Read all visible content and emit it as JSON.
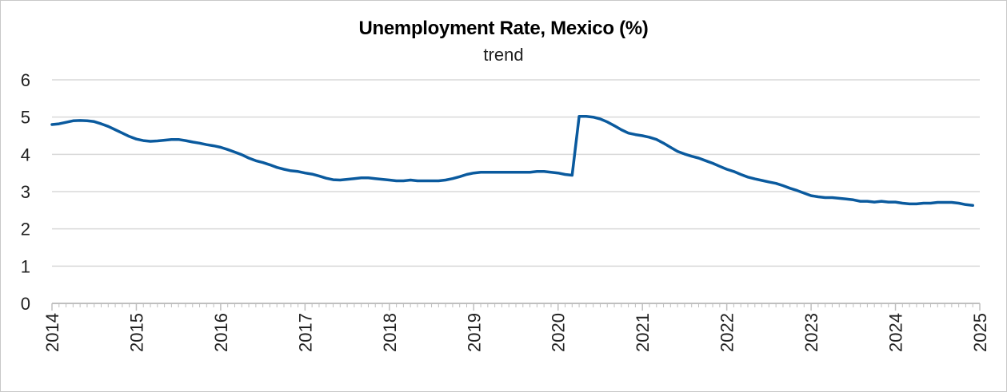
{
  "chart_data": {
    "type": "line",
    "title": "Unemployment Rate, Mexico (%)",
    "subtitle": "trend",
    "xlabel": "",
    "ylabel": "",
    "ylim": [
      0,
      6
    ],
    "yticks": [
      "0",
      "1",
      "2",
      "3",
      "4",
      "5",
      "6"
    ],
    "xticks": [
      "2014",
      "2015",
      "2016",
      "2017",
      "2018",
      "2019",
      "2020",
      "2021",
      "2022",
      "2023",
      "2024",
      "2025"
    ],
    "grid": true,
    "series": [
      {
        "color": "#0a5a9e",
        "points": [
          [
            "2014-01",
            4.8
          ],
          [
            "2014-02",
            4.82
          ],
          [
            "2014-03",
            4.86
          ],
          [
            "2014-04",
            4.9
          ],
          [
            "2014-05",
            4.91
          ],
          [
            "2014-06",
            4.9
          ],
          [
            "2014-07",
            4.88
          ],
          [
            "2014-08",
            4.82
          ],
          [
            "2014-09",
            4.75
          ],
          [
            "2014-10",
            4.66
          ],
          [
            "2014-11",
            4.57
          ],
          [
            "2014-12",
            4.48
          ],
          [
            "2015-01",
            4.41
          ],
          [
            "2015-02",
            4.37
          ],
          [
            "2015-03",
            4.35
          ],
          [
            "2015-04",
            4.36
          ],
          [
            "2015-05",
            4.38
          ],
          [
            "2015-06",
            4.4
          ],
          [
            "2015-07",
            4.4
          ],
          [
            "2015-08",
            4.37
          ],
          [
            "2015-09",
            4.33
          ],
          [
            "2015-10",
            4.3
          ],
          [
            "2015-11",
            4.26
          ],
          [
            "2015-12",
            4.23
          ],
          [
            "2016-01",
            4.19
          ],
          [
            "2016-02",
            4.13
          ],
          [
            "2016-03",
            4.06
          ],
          [
            "2016-04",
            3.99
          ],
          [
            "2016-05",
            3.9
          ],
          [
            "2016-06",
            3.83
          ],
          [
            "2016-07",
            3.78
          ],
          [
            "2016-08",
            3.72
          ],
          [
            "2016-09",
            3.65
          ],
          [
            "2016-10",
            3.6
          ],
          [
            "2016-11",
            3.56
          ],
          [
            "2016-12",
            3.54
          ],
          [
            "2017-01",
            3.5
          ],
          [
            "2017-02",
            3.47
          ],
          [
            "2017-03",
            3.42
          ],
          [
            "2017-04",
            3.36
          ],
          [
            "2017-05",
            3.32
          ],
          [
            "2017-06",
            3.31
          ],
          [
            "2017-07",
            3.33
          ],
          [
            "2017-08",
            3.35
          ],
          [
            "2017-09",
            3.37
          ],
          [
            "2017-10",
            3.37
          ],
          [
            "2017-11",
            3.35
          ],
          [
            "2017-12",
            3.33
          ],
          [
            "2018-01",
            3.31
          ],
          [
            "2018-02",
            3.29
          ],
          [
            "2018-03",
            3.29
          ],
          [
            "2018-04",
            3.31
          ],
          [
            "2018-05",
            3.29
          ],
          [
            "2018-06",
            3.29
          ],
          [
            "2018-07",
            3.29
          ],
          [
            "2018-08",
            3.29
          ],
          [
            "2018-09",
            3.31
          ],
          [
            "2018-10",
            3.35
          ],
          [
            "2018-11",
            3.4
          ],
          [
            "2018-12",
            3.46
          ],
          [
            "2019-01",
            3.5
          ],
          [
            "2019-02",
            3.52
          ],
          [
            "2019-03",
            3.52
          ],
          [
            "2019-04",
            3.52
          ],
          [
            "2019-05",
            3.52
          ],
          [
            "2019-06",
            3.52
          ],
          [
            "2019-07",
            3.52
          ],
          [
            "2019-08",
            3.52
          ],
          [
            "2019-09",
            3.52
          ],
          [
            "2019-10",
            3.54
          ],
          [
            "2019-11",
            3.54
          ],
          [
            "2019-12",
            3.52
          ],
          [
            "2020-01",
            3.5
          ],
          [
            "2020-02",
            3.46
          ],
          [
            "2020-03",
            3.44
          ],
          [
            "2020-04",
            5.02
          ],
          [
            "2020-05",
            5.02
          ],
          [
            "2020-06",
            5.0
          ],
          [
            "2020-07",
            4.95
          ],
          [
            "2020-08",
            4.87
          ],
          [
            "2020-09",
            4.77
          ],
          [
            "2020-10",
            4.66
          ],
          [
            "2020-11",
            4.57
          ],
          [
            "2020-12",
            4.53
          ],
          [
            "2021-01",
            4.5
          ],
          [
            "2021-02",
            4.46
          ],
          [
            "2021-03",
            4.4
          ],
          [
            "2021-04",
            4.3
          ],
          [
            "2021-05",
            4.19
          ],
          [
            "2021-06",
            4.08
          ],
          [
            "2021-07",
            4.01
          ],
          [
            "2021-08",
            3.95
          ],
          [
            "2021-09",
            3.9
          ],
          [
            "2021-10",
            3.83
          ],
          [
            "2021-11",
            3.76
          ],
          [
            "2021-12",
            3.68
          ],
          [
            "2022-01",
            3.6
          ],
          [
            "2022-02",
            3.54
          ],
          [
            "2022-03",
            3.46
          ],
          [
            "2022-04",
            3.39
          ],
          [
            "2022-05",
            3.34
          ],
          [
            "2022-06",
            3.3
          ],
          [
            "2022-07",
            3.26
          ],
          [
            "2022-08",
            3.22
          ],
          [
            "2022-09",
            3.16
          ],
          [
            "2022-10",
            3.09
          ],
          [
            "2022-11",
            3.03
          ],
          [
            "2022-12",
            2.96
          ],
          [
            "2023-01",
            2.89
          ],
          [
            "2023-02",
            2.86
          ],
          [
            "2023-03",
            2.84
          ],
          [
            "2023-04",
            2.84
          ],
          [
            "2023-05",
            2.82
          ],
          [
            "2023-06",
            2.8
          ],
          [
            "2023-07",
            2.78
          ],
          [
            "2023-08",
            2.74
          ],
          [
            "2023-09",
            2.74
          ],
          [
            "2023-10",
            2.72
          ],
          [
            "2023-11",
            2.74
          ],
          [
            "2023-12",
            2.72
          ],
          [
            "2024-01",
            2.72
          ],
          [
            "2024-02",
            2.69
          ],
          [
            "2024-03",
            2.67
          ],
          [
            "2024-04",
            2.67
          ],
          [
            "2024-05",
            2.69
          ],
          [
            "2024-06",
            2.69
          ],
          [
            "2024-07",
            2.71
          ],
          [
            "2024-08",
            2.71
          ],
          [
            "2024-09",
            2.71
          ],
          [
            "2024-10",
            2.69
          ],
          [
            "2024-11",
            2.65
          ],
          [
            "2024-12",
            2.63
          ]
        ]
      }
    ]
  }
}
